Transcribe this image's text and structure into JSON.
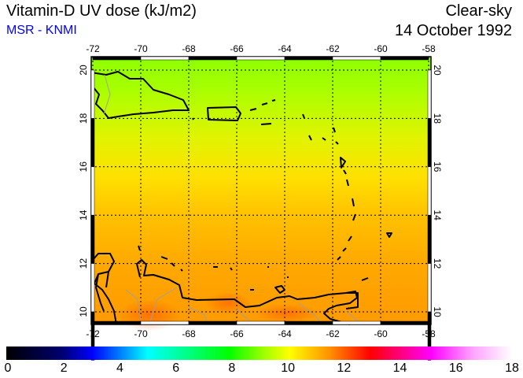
{
  "header": {
    "title": "Vitamin-D UV dose (kJ/m2)",
    "source": "MSR - KNMI",
    "sky": "Clear-sky",
    "date": "14 October 1992"
  },
  "map": {
    "lon_ticks": [
      "-72",
      "-70",
      "-68",
      "-66",
      "-64",
      "-62",
      "-60",
      "-58"
    ],
    "lat_ticks": [
      "20",
      "18",
      "16",
      "14",
      "12",
      "10"
    ],
    "lon_range": [
      -72,
      -58
    ],
    "lat_range": [
      9.5,
      20.5
    ]
  },
  "colorbar": {
    "labels": [
      "0",
      "2",
      "4",
      "6",
      "8",
      "10",
      "12",
      "14",
      "16",
      "18"
    ],
    "min": 0,
    "max": 18
  },
  "colors": {
    "title": "#000000",
    "source": "#0000ff"
  }
}
